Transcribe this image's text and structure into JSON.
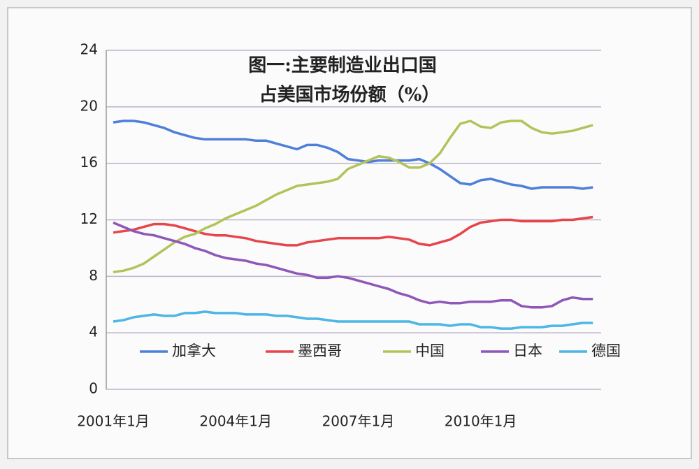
{
  "chart_data": {
    "type": "line",
    "title": "图一:主要制造业出口国",
    "subtitle": "占美国市场份额（%）",
    "categories": [
      "2001年1月",
      null,
      null,
      null,
      null,
      null,
      null,
      null,
      null,
      null,
      null,
      null,
      "2004年1月",
      null,
      null,
      null,
      null,
      null,
      null,
      null,
      null,
      null,
      null,
      null,
      "2007年1月",
      null,
      null,
      null,
      null,
      null,
      null,
      null,
      null,
      null,
      null,
      null,
      "2010年1月",
      null,
      null,
      null,
      null,
      null,
      null,
      null,
      null,
      null,
      null,
      null
    ],
    "series": [
      {
        "name": "加拿大",
        "color": "#4f7fd8",
        "values": [
          18.9,
          19.0,
          19.0,
          18.9,
          18.7,
          18.5,
          18.2,
          18.0,
          17.8,
          17.7,
          17.7,
          17.7,
          17.7,
          17.7,
          17.6,
          17.6,
          17.4,
          17.2,
          17.0,
          17.3,
          17.3,
          17.1,
          16.8,
          16.3,
          16.2,
          16.1,
          16.2,
          16.2,
          16.2,
          16.2,
          16.3,
          16.0,
          15.6,
          15.1,
          14.6,
          14.5,
          14.8,
          14.9,
          14.7,
          14.5,
          14.4,
          14.2,
          14.3,
          14.3,
          14.3,
          14.3,
          14.2,
          14.3
        ]
      },
      {
        "name": "墨西哥",
        "color": "#e6464b",
        "values": [
          11.1,
          11.2,
          11.3,
          11.5,
          11.7,
          11.7,
          11.6,
          11.4,
          11.2,
          11.0,
          10.9,
          10.9,
          10.8,
          10.7,
          10.5,
          10.4,
          10.3,
          10.2,
          10.2,
          10.4,
          10.5,
          10.6,
          10.7,
          10.7,
          10.7,
          10.7,
          10.7,
          10.8,
          10.7,
          10.6,
          10.3,
          10.2,
          10.4,
          10.6,
          11.0,
          11.5,
          11.8,
          11.9,
          12.0,
          12.0,
          11.9,
          11.9,
          11.9,
          11.9,
          12.0,
          12.0,
          12.1,
          12.2
        ]
      },
      {
        "name": "中国",
        "color": "#b3c35a",
        "values": [
          8.3,
          8.4,
          8.6,
          8.9,
          9.4,
          9.9,
          10.4,
          10.8,
          11.0,
          11.4,
          11.7,
          12.1,
          12.4,
          12.7,
          13.0,
          13.4,
          13.8,
          14.1,
          14.4,
          14.5,
          14.6,
          14.7,
          14.9,
          15.6,
          15.9,
          16.2,
          16.5,
          16.4,
          16.1,
          15.7,
          15.7,
          16.0,
          16.7,
          17.8,
          18.8,
          19.0,
          18.6,
          18.5,
          18.9,
          19.0,
          19.0,
          18.5,
          18.2,
          18.1,
          18.2,
          18.3,
          18.5,
          18.7
        ]
      },
      {
        "name": "日本",
        "color": "#8e57b8",
        "values": [
          11.8,
          11.5,
          11.2,
          11.0,
          10.9,
          10.7,
          10.5,
          10.3,
          10.0,
          9.8,
          9.5,
          9.3,
          9.2,
          9.1,
          8.9,
          8.8,
          8.6,
          8.4,
          8.2,
          8.1,
          7.9,
          7.9,
          8.0,
          7.9,
          7.7,
          7.5,
          7.3,
          7.1,
          6.8,
          6.6,
          6.3,
          6.1,
          6.2,
          6.1,
          6.1,
          6.2,
          6.2,
          6.2,
          6.3,
          6.3,
          5.9,
          5.8,
          5.8,
          5.9,
          6.3,
          6.5,
          6.4,
          6.4
        ]
      },
      {
        "name": "德国",
        "color": "#4db6e6",
        "values": [
          4.8,
          4.9,
          5.1,
          5.2,
          5.3,
          5.2,
          5.2,
          5.4,
          5.4,
          5.5,
          5.4,
          5.4,
          5.4,
          5.3,
          5.3,
          5.3,
          5.2,
          5.2,
          5.1,
          5.0,
          5.0,
          4.9,
          4.8,
          4.8,
          4.8,
          4.8,
          4.8,
          4.8,
          4.8,
          4.8,
          4.6,
          4.6,
          4.6,
          4.5,
          4.6,
          4.6,
          4.4,
          4.4,
          4.3,
          4.3,
          4.4,
          4.4,
          4.4,
          4.5,
          4.5,
          4.6,
          4.7,
          4.7
        ]
      }
    ],
    "ylim": [
      0,
      24
    ],
    "yticks": [
      0,
      4,
      8,
      12,
      16,
      20,
      24
    ],
    "grid": true,
    "legend": "bottom"
  }
}
